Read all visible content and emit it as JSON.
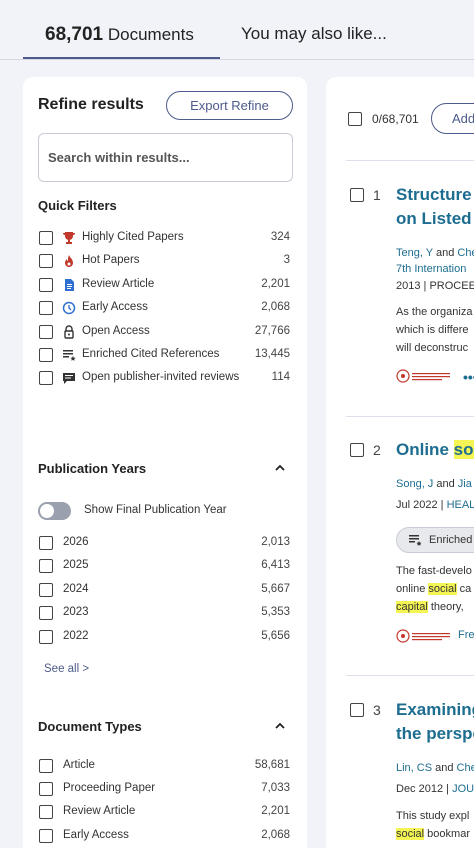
{
  "tabs": {
    "documents_count": "68,701",
    "documents_label": "Documents",
    "you_may_like": "You may also like..."
  },
  "sidebar": {
    "title": "Refine results",
    "export_button": "Export Refine",
    "search_placeholder": "Search within results...",
    "quick_filters": {
      "title": "Quick Filters",
      "items": [
        {
          "label": "Highly Cited Papers",
          "count": "324",
          "icon": "trophy-icon"
        },
        {
          "label": "Hot Papers",
          "count": "3",
          "icon": "flame-icon"
        },
        {
          "label": "Review Article",
          "count": "2,201",
          "icon": "document-icon"
        },
        {
          "label": "Early Access",
          "count": "2,068",
          "icon": "clock-icon"
        },
        {
          "label": "Open Access",
          "count": "27,766",
          "icon": "lock-open-icon"
        },
        {
          "label": "Enriched Cited References",
          "count": "13,445",
          "icon": "enriched-list-icon"
        },
        {
          "label": "Open publisher-invited reviews",
          "count": "114",
          "icon": "comment-icon"
        }
      ]
    },
    "publication_years": {
      "title": "Publication Years",
      "toggle_label": "Show Final Publication Year",
      "items": [
        {
          "label": "2026",
          "count": "2,013"
        },
        {
          "label": "2025",
          "count": "6,413"
        },
        {
          "label": "2024",
          "count": "5,667"
        },
        {
          "label": "2023",
          "count": "5,353"
        },
        {
          "label": "2022",
          "count": "5,656"
        }
      ],
      "see_all": "See all >"
    },
    "document_types": {
      "title": "Document Types",
      "items": [
        {
          "label": "Article",
          "count": "58,681"
        },
        {
          "label": "Proceeding Paper",
          "count": "7,033"
        },
        {
          "label": "Review Article",
          "count": "2,201"
        },
        {
          "label": "Early Access",
          "count": "2,068"
        }
      ]
    }
  },
  "results": {
    "selected": "0/68,701",
    "add_button": "Add",
    "records": [
      {
        "number": "1",
        "title_l1": "Structure o",
        "title_l2": "on Listed C",
        "author_a": "Teng, Y",
        "author_and": " and ",
        "author_b": "Che",
        "conf": "7th Internation",
        "pub_year": "2013 | ",
        "pub_venue": "PROCEEDI",
        "abstract": [
          "As the organiza",
          "which is differe",
          "will deconstruc"
        ]
      },
      {
        "number": "2",
        "title_pre": "Online ",
        "title_hl": "soc",
        "author_a": "Song, J",
        "author_and": " and ",
        "author_b": "Jia",
        "pub_date": "Jul 2022 | ",
        "pub_venue": "HEAL",
        "enriched_label": "Enriched",
        "abstract_l1": "The fast-develo",
        "abstract_l2_pre": "online ",
        "abstract_l2_hl": "social",
        "abstract_l2_post": " ca",
        "abstract_l3_hl": "capital",
        "abstract_l3_post": " theory,",
        "free_label": "Fre"
      },
      {
        "number": "3",
        "title_l1": "Examining",
        "title_l2": "the perspe",
        "author_a": "Lin, CS",
        "author_and": " and ",
        "author_b": "Che",
        "pub_date": "Dec 2012 | ",
        "pub_venue": "JOU",
        "abstract_l1": "This study expl",
        "abstract_l2_hl": "social",
        "abstract_l2_post": " bookmar"
      }
    ]
  },
  "colors": {
    "accent": "#4d5b8a",
    "link": "#1d6d90",
    "highlight": "#f4f454",
    "background": "#f1f3f9",
    "trophy": "#c0392b",
    "fulltext_red": "#c0392b"
  }
}
